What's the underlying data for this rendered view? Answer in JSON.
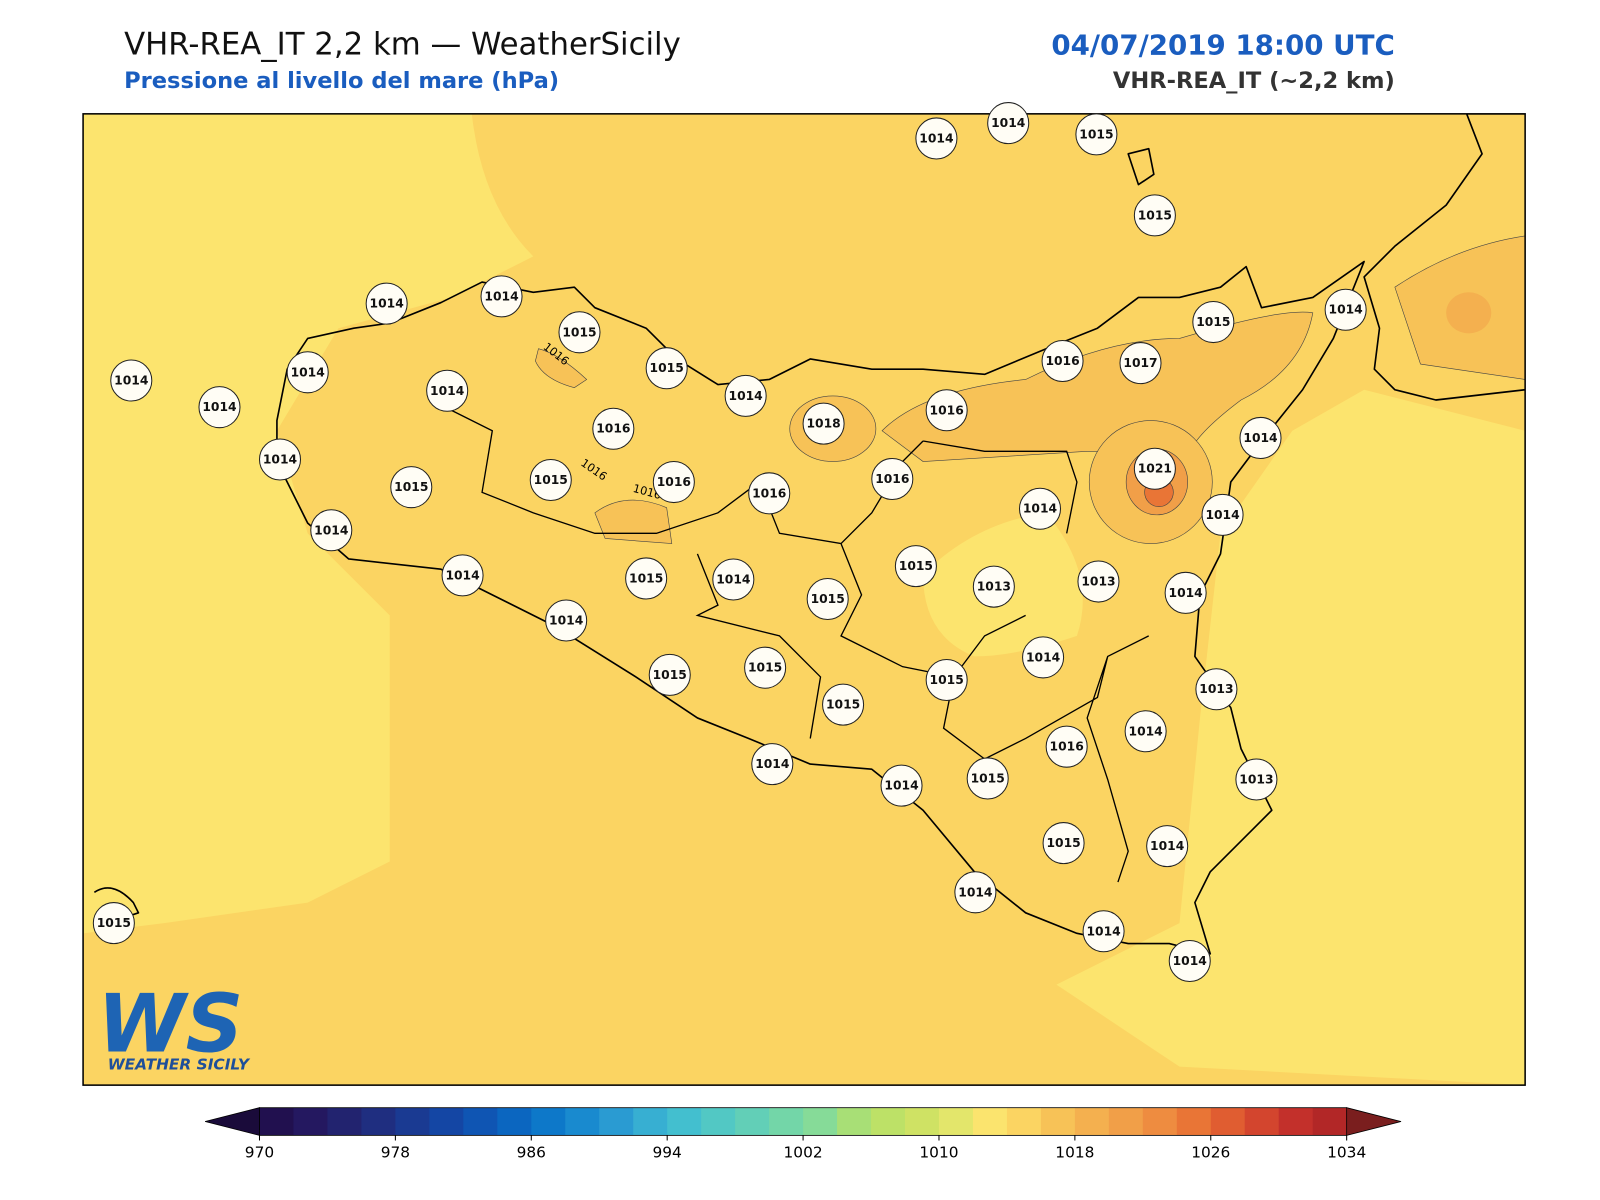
{
  "header": {
    "title": "VHR-REA_IT 2,2 km — WeatherSicily",
    "subtitle": "Pressione al livello del mare (hPa)",
    "datetime": "04/07/2019 18:00 UTC",
    "model": "VHR-REA_IT (~2,2 km)"
  },
  "stations": [
    "1014",
    "1014",
    "1015",
    "1015",
    "1014",
    "1014",
    "1015",
    "1014",
    "1014",
    "1014",
    "1015",
    "1014",
    "1014",
    "1016",
    "1014",
    "1015",
    "1015",
    "1016",
    "1016",
    "1018",
    "1016",
    "1016",
    "1016",
    "1017",
    "1015",
    "1014",
    "1014",
    "1021",
    "1014",
    "1014",
    "1014",
    "1014",
    "1015",
    "1014",
    "1015",
    "1015",
    "1013",
    "1013",
    "1014",
    "1014",
    "1015",
    "1015",
    "1015",
    "1015",
    "1014",
    "1013",
    "1014",
    "1016",
    "1013",
    "1014",
    "1014",
    "1015",
    "1015",
    "1014",
    "1014",
    "1014",
    "1014",
    "1015"
  ],
  "contour_labels": [
    "1016",
    "1016",
    "1016"
  ],
  "logo": {
    "mark": "WS",
    "name": "WEATHER SICILY"
  },
  "colorbar": {
    "ticks": [
      970,
      978,
      986,
      994,
      1002,
      1010,
      1018,
      1026,
      1034
    ],
    "colors": [
      "#21104f",
      "#241860",
      "#22236f",
      "#1f2e80",
      "#1a3a92",
      "#1446a4",
      "#0f55b3",
      "#0b66c0",
      "#0d78c9",
      "#198acf",
      "#2a9bd2",
      "#37afd2",
      "#43bfcf",
      "#52c8c4",
      "#62cfb7",
      "#73d6a8",
      "#86db98",
      "#a8df76",
      "#bde167",
      "#cfe264",
      "#e3e66b",
      "#fbe46e",
      "#fbd462",
      "#f7c257",
      "#f4b04f",
      "#f19f48",
      "#ee8c40",
      "#e97536",
      "#e05d31",
      "#d3452e",
      "#c3302b",
      "#b22727"
    ],
    "under": "#1a0b3a",
    "over": "#7a1e1e"
  }
}
